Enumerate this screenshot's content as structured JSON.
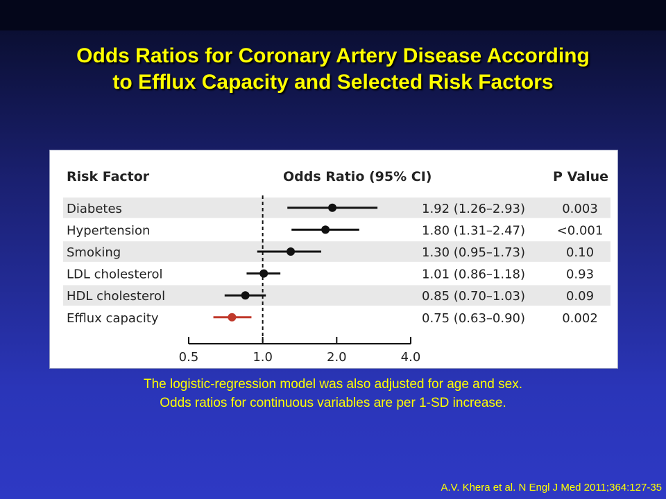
{
  "slide": {
    "title_line1": "Odds Ratios for Coronary Artery Disease According",
    "title_line2": "to Efflux Capacity and Selected Risk Factors",
    "footnote_line1": "The logistic-regression model was also adjusted for age and sex.",
    "footnote_line2": "Odds ratios for continuous variables are per 1-SD increase.",
    "citation": "A.V. Khera et al. N Engl J Med 2011;364:127-35"
  },
  "colors": {
    "title": "#ffff00",
    "point_default": "#111111",
    "point_highlight": "#c0392b",
    "row_stripe": "#e8e8e8"
  },
  "chart_data": {
    "type": "forest",
    "column_headers": {
      "risk_factor": "Risk Factor",
      "odds_ratio": "Odds Ratio (95% CI)",
      "p_value": "P Value"
    },
    "x_scale": "log",
    "x_ticks": [
      0.5,
      1.0,
      2.0,
      4.0
    ],
    "x_tick_labels": [
      "0.5",
      "1.0",
      "2.0",
      "4.0"
    ],
    "reference_line": 1.0,
    "rows": [
      {
        "label": "Diabetes",
        "or": 1.92,
        "lower": 1.26,
        "upper": 2.93,
        "or_text": "1.92 (1.26–2.93)",
        "p_text": "0.003",
        "highlight": false
      },
      {
        "label": "Hypertension",
        "or": 1.8,
        "lower": 1.31,
        "upper": 2.47,
        "or_text": "1.80 (1.31–2.47)",
        "p_text": "<0.001",
        "highlight": false
      },
      {
        "label": "Smoking",
        "or": 1.3,
        "lower": 0.95,
        "upper": 1.73,
        "or_text": "1.30 (0.95–1.73)",
        "p_text": "0.10",
        "highlight": false
      },
      {
        "label": "LDL cholesterol",
        "or": 1.01,
        "lower": 0.86,
        "upper": 1.18,
        "or_text": "1.01 (0.86–1.18)",
        "p_text": "0.93",
        "highlight": false
      },
      {
        "label": "HDL cholesterol",
        "or": 0.85,
        "lower": 0.7,
        "upper": 1.03,
        "or_text": "0.85 (0.70–1.03)",
        "p_text": "0.09",
        "highlight": false
      },
      {
        "label": "Efflux capacity",
        "or": 0.75,
        "lower": 0.63,
        "upper": 0.9,
        "or_text": "0.75 (0.63–0.90)",
        "p_text": "0.002",
        "highlight": true
      }
    ]
  }
}
